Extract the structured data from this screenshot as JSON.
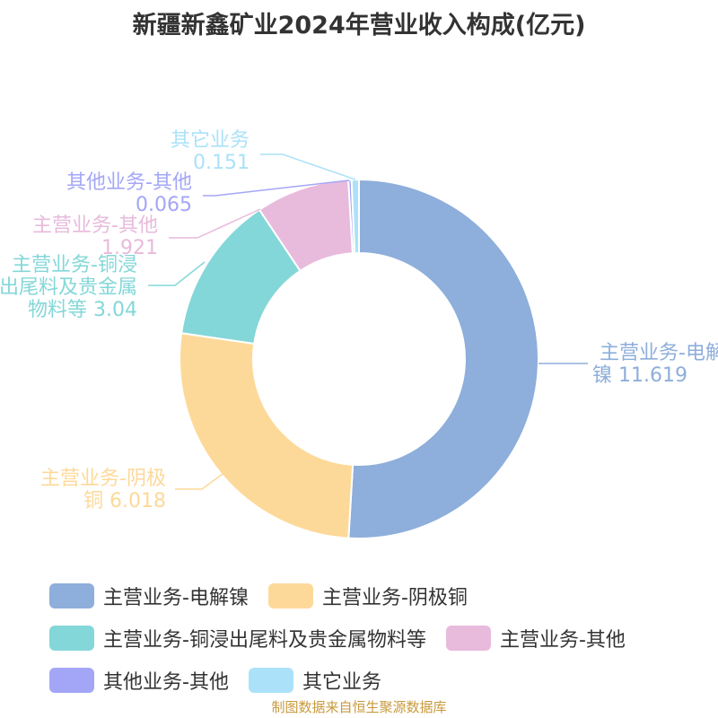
{
  "chart_data": {
    "type": "pie",
    "title": "新疆新鑫矿业2024年营业收入构成(亿元)",
    "categories": [
      "主营业务-电解镍",
      "主营业务-阴极铜",
      "主营业务-铜浸出尾料及贵金属物料等",
      "主营业务-其他",
      "其他业务-其他",
      "其它业务"
    ],
    "values": [
      11.619,
      6.018,
      3.04,
      1.921,
      0.065,
      0.151
    ],
    "value_labels": [
      "11.619",
      "6.018",
      "3.04",
      "1.921",
      "0.065",
      "0.151"
    ],
    "colors": [
      "#8eaedb",
      "#fdd999",
      "#84d7d8",
      "#e8badc",
      "#a3a6f7",
      "#abe2f9"
    ],
    "donut": true,
    "legend_position": "bottom"
  },
  "footer": {
    "source": "制图数据来自恒生聚源数据库"
  }
}
